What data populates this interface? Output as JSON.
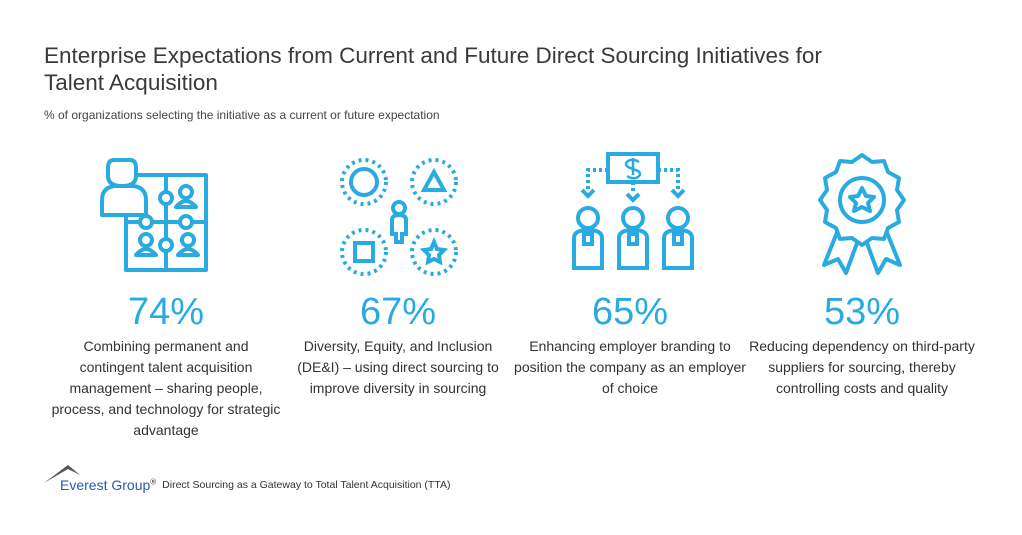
{
  "title": "Enterprise Expectations from Current and Future Direct Sourcing Initiatives for Talent Acquisition",
  "subtitle": "% of organizations selecting the initiative as a current or future expectation",
  "accent_color": "#29abe2",
  "items": [
    {
      "icon": "puzzle-people-icon",
      "percent": "74%",
      "value": 74,
      "description": "Combining permanent and contingent talent acquisition management – sharing people, process, and technology for strategic advantage"
    },
    {
      "icon": "diversity-shapes-icon",
      "percent": "67%",
      "value": 67,
      "description": "Diversity, Equity, and Inclusion (DE&I) – using direct sourcing to improve diversity in sourcing"
    },
    {
      "icon": "employer-branding-icon",
      "percent": "65%",
      "value": 65,
      "description": "Enhancing employer branding to position the company as an employer of choice"
    },
    {
      "icon": "award-ribbon-icon",
      "percent": "53%",
      "value": 53,
      "description": "Reducing dependency on third-party suppliers for sourcing, thereby controlling costs and quality"
    }
  ],
  "footer": {
    "logo": "Everest Group",
    "logo_mark": "®",
    "source": "Direct Sourcing as a Gateway to Total Talent Acquisition (TTA)"
  }
}
